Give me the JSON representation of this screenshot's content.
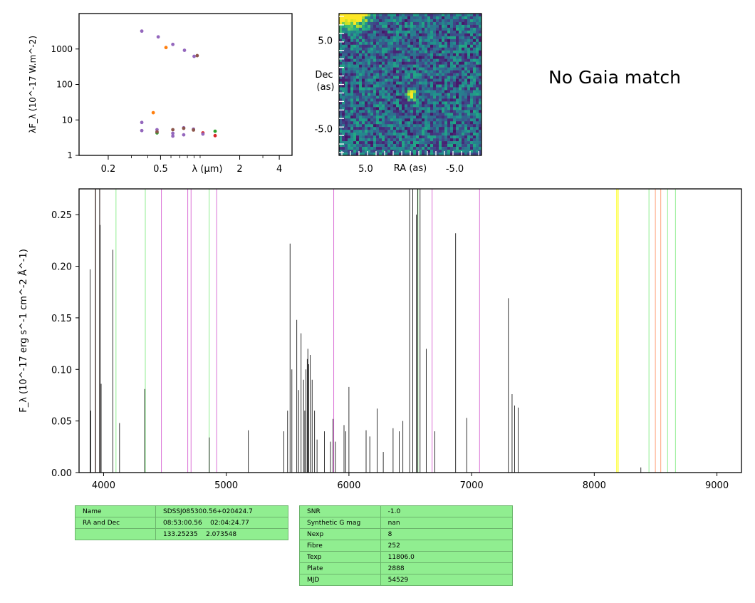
{
  "chart_data": [
    {
      "type": "scatter",
      "xscale": "log",
      "yscale": "log",
      "xlim": [
        0.12,
        5.0
      ],
      "ylim": [
        1,
        10000
      ],
      "xticks": [
        0.2,
        0.5,
        2,
        4
      ],
      "xtick_labels": [
        "0.2",
        "0.5",
        "2",
        "4"
      ],
      "yticks": [
        1,
        10,
        100,
        1000
      ],
      "ytick_labels": [
        "1",
        "10",
        "100",
        "1000"
      ],
      "xlabel": "λ (μm)",
      "ylabel": "λF_λ (10^-17 W.m^-2)",
      "points": [
        {
          "x": 0.36,
          "y": 3200,
          "color": "#9467bd"
        },
        {
          "x": 0.48,
          "y": 2200,
          "color": "#9467bd"
        },
        {
          "x": 0.62,
          "y": 1350,
          "color": "#9467bd"
        },
        {
          "x": 0.76,
          "y": 920,
          "color": "#9467bd"
        },
        {
          "x": 0.9,
          "y": 620,
          "color": "#9467bd"
        },
        {
          "x": 0.55,
          "y": 1100,
          "color": "#ff7f0e"
        },
        {
          "x": 0.95,
          "y": 650,
          "color": "#8c564b"
        },
        {
          "x": 0.36,
          "y": 8.5,
          "color": "#9467bd"
        },
        {
          "x": 0.36,
          "y": 5.0,
          "color": "#9467bd"
        },
        {
          "x": 0.44,
          "y": 16,
          "color": "#ff7f0e"
        },
        {
          "x": 0.47,
          "y": 5.3,
          "color": "#9467bd"
        },
        {
          "x": 0.47,
          "y": 4.3,
          "color": "#2ca02c"
        },
        {
          "x": 0.47,
          "y": 4.6,
          "color": "#8c564b"
        },
        {
          "x": 0.62,
          "y": 5.3,
          "color": "#8c564b"
        },
        {
          "x": 0.62,
          "y": 4.2,
          "color": "#9467bd"
        },
        {
          "x": 0.62,
          "y": 3.5,
          "color": "#9467bd"
        },
        {
          "x": 0.75,
          "y": 6.0,
          "color": "#9467bd"
        },
        {
          "x": 0.75,
          "y": 5.8,
          "color": "#8c564b"
        },
        {
          "x": 0.75,
          "y": 3.8,
          "color": "#9467bd"
        },
        {
          "x": 0.89,
          "y": 5.5,
          "color": "#9467bd"
        },
        {
          "x": 0.89,
          "y": 5.2,
          "color": "#8c564b"
        },
        {
          "x": 1.05,
          "y": 4.3,
          "color": "#d62728"
        },
        {
          "x": 1.05,
          "y": 4.0,
          "color": "#9467bd"
        },
        {
          "x": 1.3,
          "y": 4.8,
          "color": "#2ca02c"
        },
        {
          "x": 1.3,
          "y": 3.6,
          "color": "#d62728"
        }
      ]
    },
    {
      "type": "heatmap",
      "xlabel": "RA (as)",
      "ylabel_line1": "Dec",
      "ylabel_line2": "(as)",
      "xlim": [
        8.0,
        -8.0
      ],
      "ylim": [
        -8.0,
        8.0
      ],
      "xticks": [
        5.0,
        -5.0
      ],
      "xtick_labels": [
        "5.0",
        "-5.0"
      ],
      "yticks": [
        5.0,
        -5.0
      ],
      "ytick_labels": [
        "5.0",
        "-5.0"
      ],
      "colormap": "viridis",
      "features": [
        {
          "kind": "bright-corner",
          "ra": 7.0,
          "dec": 8.0
        },
        {
          "kind": "source",
          "ra": 0.0,
          "dec": -1.0
        }
      ]
    },
    {
      "type": "line",
      "xlim": [
        3800,
        9200
      ],
      "ylim": [
        0.0,
        0.275
      ],
      "xticks": [
        4000,
        5000,
        6000,
        7000,
        8000,
        9000
      ],
      "xtick_labels": [
        "4000",
        "5000",
        "6000",
        "7000",
        "8000",
        "9000"
      ],
      "yticks": [
        0.0,
        0.05,
        0.1,
        0.15,
        0.2,
        0.25
      ],
      "ytick_labels": [
        "0.00",
        "0.05",
        "0.10",
        "0.15",
        "0.20",
        "0.25"
      ],
      "ylabel": "F_λ (10^-17 erg s^-1 cm^-2 Å^-1)",
      "line_color": "#000000",
      "spikes": [
        [
          3890,
          0.197
        ],
        [
          3895,
          0.06
        ],
        [
          3935,
          0.275
        ],
        [
          3968,
          0.275
        ],
        [
          3972,
          0.24
        ],
        [
          3980,
          0.086
        ],
        [
          4075,
          0.216
        ],
        [
          4130,
          0.048
        ],
        [
          4335,
          0.081
        ],
        [
          4862,
          0.034
        ],
        [
          5180,
          0.041
        ],
        [
          5470,
          0.04
        ],
        [
          5500,
          0.06
        ],
        [
          5520,
          0.222
        ],
        [
          5535,
          0.1
        ],
        [
          5575,
          0.148
        ],
        [
          5590,
          0.08
        ],
        [
          5610,
          0.135
        ],
        [
          5630,
          0.09
        ],
        [
          5640,
          0.06
        ],
        [
          5650,
          0.1
        ],
        [
          5660,
          0.11
        ],
        [
          5665,
          0.12
        ],
        [
          5672,
          0.105
        ],
        [
          5685,
          0.114
        ],
        [
          5700,
          0.09
        ],
        [
          5720,
          0.06
        ],
        [
          5740,
          0.032
        ],
        [
          5800,
          0.04
        ],
        [
          5850,
          0.03
        ],
        [
          5870,
          0.052
        ],
        [
          5890,
          0.03
        ],
        [
          5960,
          0.046
        ],
        [
          5975,
          0.04
        ],
        [
          6000,
          0.083
        ],
        [
          6140,
          0.041
        ],
        [
          6170,
          0.035
        ],
        [
          6230,
          0.062
        ],
        [
          6280,
          0.02
        ],
        [
          6360,
          0.043
        ],
        [
          6410,
          0.04
        ],
        [
          6440,
          0.05
        ],
        [
          6495,
          0.275
        ],
        [
          6520,
          0.275
        ],
        [
          6550,
          0.25
        ],
        [
          6560,
          0.275
        ],
        [
          6580,
          0.275
        ],
        [
          6630,
          0.12
        ],
        [
          6700,
          0.04
        ],
        [
          6870,
          0.232
        ],
        [
          6960,
          0.053
        ],
        [
          7300,
          0.169
        ],
        [
          7330,
          0.076
        ],
        [
          7350,
          0.065
        ],
        [
          7380,
          0.063
        ],
        [
          8380,
          0.005
        ]
      ],
      "emission_lines": [
        {
          "x": 3933,
          "color": "#8c564b"
        },
        {
          "x": 3968,
          "color": "#8c564b"
        },
        {
          "x": 4101,
          "color": "#90ee90"
        },
        {
          "x": 4340,
          "color": "#90ee90"
        },
        {
          "x": 4471,
          "color": "#da70d6"
        },
        {
          "x": 4686,
          "color": "#da70d6"
        },
        {
          "x": 4713,
          "color": "#da70d6"
        },
        {
          "x": 4861,
          "color": "#90ee90"
        },
        {
          "x": 4922,
          "color": "#da70d6"
        },
        {
          "x": 5876,
          "color": "#da70d6"
        },
        {
          "x": 6563,
          "color": "#90ee90"
        },
        {
          "x": 6678,
          "color": "#da70d6"
        },
        {
          "x": 7065,
          "color": "#da70d6"
        },
        {
          "x": 8183,
          "color": "#ffff00"
        },
        {
          "x": 8195,
          "color": "#ffff00"
        },
        {
          "x": 8446,
          "color": "#90ee90"
        },
        {
          "x": 8498,
          "color": "#ffa07a"
        },
        {
          "x": 8542,
          "color": "#ffa07a"
        },
        {
          "x": 8598,
          "color": "#90ee90"
        },
        {
          "x": 8662,
          "color": "#90ee90"
        }
      ]
    }
  ],
  "gaia_text": "No Gaia match",
  "table_left": {
    "rows": [
      [
        "Name",
        "SDSSJ085300.56+020424.7"
      ],
      [
        "RA and Dec",
        "08:53:00.56    02:04:24.77"
      ],
      [
        "",
        "133.25235    2.073548"
      ]
    ]
  },
  "table_right": {
    "rows": [
      [
        "SNR",
        "-1.0"
      ],
      [
        "Synthetic G mag",
        "nan"
      ],
      [
        "Nexp",
        "8"
      ],
      [
        "Fibre",
        "252"
      ],
      [
        "Texp",
        "11806.0"
      ],
      [
        "Plate",
        "2888"
      ],
      [
        "MJD",
        "54529"
      ]
    ]
  }
}
